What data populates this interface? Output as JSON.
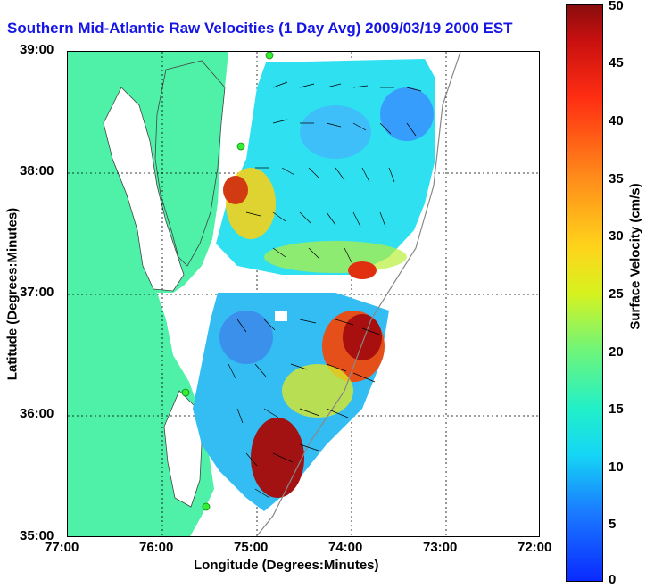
{
  "title": "Southern Mid-Atlantic Raw Velocities (1 Day Avg) 2009/03/19 2000 EST",
  "axes": {
    "xlabel": "Longitude (Degrees:Minutes)",
    "ylabel": "Latitude (Degrees:Minutes)",
    "xticks": [
      "77:00",
      "76:00",
      "75:00",
      "74:00",
      "73:00",
      "72:00"
    ],
    "yticks": [
      "39:00",
      "38:00",
      "37:00",
      "36:00",
      "35:00"
    ]
  },
  "colorbar": {
    "label": "Surface Velocity (cm/s)",
    "ticks": [
      "50",
      "45",
      "40",
      "35",
      "30",
      "25",
      "20",
      "15",
      "10",
      "5",
      "0"
    ],
    "range": [
      0,
      50
    ]
  },
  "colors": {
    "land": "#4ff0a8",
    "title": "#1515e6",
    "station": "#33ee33"
  }
}
